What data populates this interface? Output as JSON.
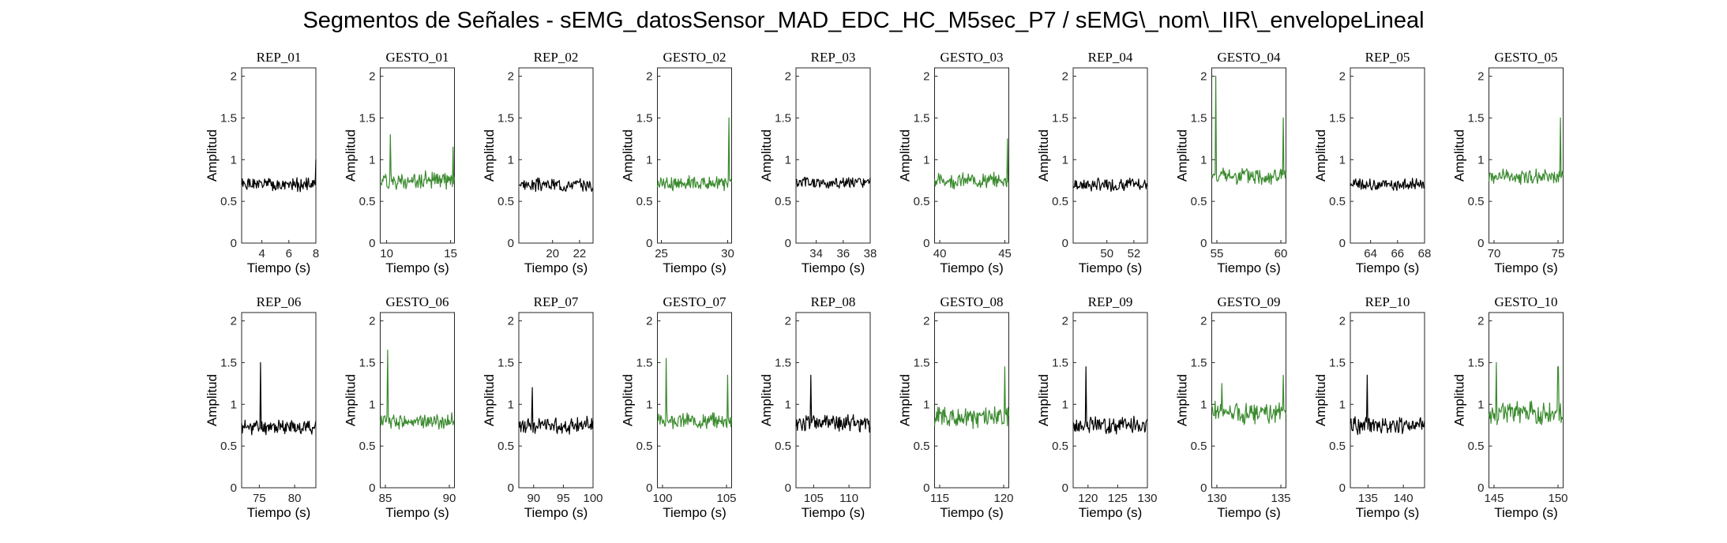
{
  "title": "Segmentos de Señales - sEMG_datosSensor_MAD_EDC_HC_M5sec_P7 / sEMG\\_nom\\_IIR\\_envelopeLineal",
  "colors": {
    "rep": "#000000",
    "gesto": "#3a8a2e",
    "axis": "#262626"
  },
  "chart_data": [
    {
      "type": "line",
      "title": "REP_01",
      "xlabel": "Tiempo (s)",
      "ylabel": "Amplitud",
      "xlim": [
        2.5,
        8
      ],
      "ylim": [
        0,
        2.1
      ],
      "xticks": [
        4,
        6,
        8
      ],
      "yticks": [
        0,
        0.5,
        1,
        1.5,
        2
      ],
      "series": [
        {
          "color": "#000000",
          "level": 0.7,
          "noise": 0.06,
          "spikes": [
            [
              8,
              1.0
            ]
          ]
        }
      ]
    },
    {
      "type": "line",
      "title": "GESTO_01",
      "xlabel": "Tiempo (s)",
      "ylabel": "Amplitud",
      "xlim": [
        9.5,
        15.3
      ],
      "ylim": [
        0,
        2.1
      ],
      "xticks": [
        10,
        15
      ],
      "yticks": [
        0,
        0.5,
        1,
        1.5,
        2
      ],
      "series": [
        {
          "color": "#3a8a2e",
          "level": 0.75,
          "noise": 0.08,
          "spikes": [
            [
              10.3,
              1.3
            ],
            [
              15.2,
              1.15
            ]
          ]
        }
      ]
    },
    {
      "type": "line",
      "title": "REP_02",
      "xlabel": "Tiempo (s)",
      "ylabel": "Amplitud",
      "xlim": [
        17.5,
        23
      ],
      "ylim": [
        0,
        2.1
      ],
      "xticks": [
        20,
        22
      ],
      "yticks": [
        0,
        0.5,
        1,
        1.5,
        2
      ],
      "series": [
        {
          "color": "#000000",
          "level": 0.7,
          "noise": 0.06,
          "spikes": []
        }
      ]
    },
    {
      "type": "line",
      "title": "GESTO_02",
      "xlabel": "Tiempo (s)",
      "ylabel": "Amplitud",
      "xlim": [
        24.7,
        30.3
      ],
      "ylim": [
        0,
        2.1
      ],
      "xticks": [
        25,
        30
      ],
      "yticks": [
        0,
        0.5,
        1,
        1.5,
        2
      ],
      "series": [
        {
          "color": "#3a8a2e",
          "level": 0.72,
          "noise": 0.07,
          "spikes": [
            [
              30.1,
              1.5
            ]
          ]
        }
      ]
    },
    {
      "type": "line",
      "title": "REP_03",
      "xlabel": "Tiempo (s)",
      "ylabel": "Amplitud",
      "xlim": [
        32.5,
        38
      ],
      "ylim": [
        0,
        2.1
      ],
      "xticks": [
        34,
        36,
        38
      ],
      "yticks": [
        0,
        0.5,
        1,
        1.5,
        2
      ],
      "series": [
        {
          "color": "#000000",
          "level": 0.72,
          "noise": 0.06,
          "spikes": []
        }
      ]
    },
    {
      "type": "line",
      "title": "GESTO_03",
      "xlabel": "Tiempo (s)",
      "ylabel": "Amplitud",
      "xlim": [
        39.6,
        45.3
      ],
      "ylim": [
        0,
        2.1
      ],
      "xticks": [
        40,
        45
      ],
      "yticks": [
        0,
        0.5,
        1,
        1.5,
        2
      ],
      "series": [
        {
          "color": "#3a8a2e",
          "level": 0.75,
          "noise": 0.07,
          "spikes": [
            [
              45.2,
              1.25
            ]
          ]
        }
      ]
    },
    {
      "type": "line",
      "title": "REP_04",
      "xlabel": "Tiempo (s)",
      "ylabel": "Amplitud",
      "xlim": [
        47.5,
        53
      ],
      "ylim": [
        0,
        2.1
      ],
      "xticks": [
        50,
        52
      ],
      "yticks": [
        0,
        0.5,
        1,
        1.5,
        2
      ],
      "series": [
        {
          "color": "#000000",
          "level": 0.7,
          "noise": 0.06,
          "spikes": []
        }
      ]
    },
    {
      "type": "line",
      "title": "GESTO_04",
      "xlabel": "Tiempo (s)",
      "ylabel": "Amplitud",
      "xlim": [
        54.6,
        60.4
      ],
      "ylim": [
        0,
        2.1
      ],
      "xticks": [
        55,
        60
      ],
      "yticks": [
        0,
        0.5,
        1,
        1.5,
        2
      ],
      "series": [
        {
          "color": "#3a8a2e",
          "level": 0.8,
          "noise": 0.08,
          "spikes": [
            [
              54.9,
              2.0
            ],
            [
              60.2,
              1.5
            ]
          ]
        }
      ]
    },
    {
      "type": "line",
      "title": "REP_05",
      "xlabel": "Tiempo (s)",
      "ylabel": "Amplitud",
      "xlim": [
        62.5,
        68
      ],
      "ylim": [
        0,
        2.1
      ],
      "xticks": [
        64,
        66,
        68
      ],
      "yticks": [
        0,
        0.5,
        1,
        1.5,
        2
      ],
      "series": [
        {
          "color": "#000000",
          "level": 0.7,
          "noise": 0.06,
          "spikes": []
        }
      ]
    },
    {
      "type": "line",
      "title": "GESTO_05",
      "xlabel": "Tiempo (s)",
      "ylabel": "Amplitud",
      "xlim": [
        69.6,
        75.4
      ],
      "ylim": [
        0,
        2.1
      ],
      "xticks": [
        70,
        75
      ],
      "yticks": [
        0,
        0.5,
        1,
        1.5,
        2
      ],
      "series": [
        {
          "color": "#3a8a2e",
          "level": 0.8,
          "noise": 0.07,
          "spikes": [
            [
              75.2,
              1.5
            ]
          ]
        }
      ]
    },
    {
      "type": "line",
      "title": "REP_06",
      "xlabel": "Tiempo (s)",
      "ylabel": "Amplitud",
      "xlim": [
        72.5,
        83
      ],
      "ylim": [
        0,
        2.1
      ],
      "xticks": [
        75,
        80
      ],
      "yticks": [
        0,
        0.5,
        1,
        1.5,
        2
      ],
      "series": [
        {
          "color": "#000000",
          "level": 0.73,
          "noise": 0.07,
          "spikes": [
            [
              75.2,
              1.5
            ]
          ]
        }
      ]
    },
    {
      "type": "line",
      "title": "GESTO_06",
      "xlabel": "Tiempo (s)",
      "ylabel": "Amplitud",
      "xlim": [
        84.6,
        90.4
      ],
      "ylim": [
        0,
        2.1
      ],
      "xticks": [
        85,
        90
      ],
      "yticks": [
        0,
        0.5,
        1,
        1.5,
        2
      ],
      "series": [
        {
          "color": "#3a8a2e",
          "level": 0.8,
          "noise": 0.07,
          "spikes": [
            [
              85.2,
              1.65
            ]
          ]
        }
      ]
    },
    {
      "type": "line",
      "title": "REP_07",
      "xlabel": "Tiempo (s)",
      "ylabel": "Amplitud",
      "xlim": [
        87.5,
        100
      ],
      "ylim": [
        0,
        2.1
      ],
      "xticks": [
        90,
        95,
        100
      ],
      "yticks": [
        0,
        0.5,
        1,
        1.5,
        2
      ],
      "series": [
        {
          "color": "#000000",
          "level": 0.75,
          "noise": 0.08,
          "spikes": [
            [
              89.8,
              1.2
            ]
          ]
        }
      ]
    },
    {
      "type": "line",
      "title": "GESTO_07",
      "xlabel": "Tiempo (s)",
      "ylabel": "Amplitud",
      "xlim": [
        99.6,
        105.4
      ],
      "ylim": [
        0,
        2.1
      ],
      "xticks": [
        100,
        105
      ],
      "yticks": [
        0,
        0.5,
        1,
        1.5,
        2
      ],
      "series": [
        {
          "color": "#3a8a2e",
          "level": 0.8,
          "noise": 0.07,
          "spikes": [
            [
              100.3,
              1.55
            ],
            [
              105.1,
              1.35
            ]
          ]
        }
      ]
    },
    {
      "type": "line",
      "title": "REP_08",
      "xlabel": "Tiempo (s)",
      "ylabel": "Amplitud",
      "xlim": [
        102.5,
        113
      ],
      "ylim": [
        0,
        2.1
      ],
      "xticks": [
        105,
        110
      ],
      "yticks": [
        0,
        0.5,
        1,
        1.5,
        2
      ],
      "series": [
        {
          "color": "#000000",
          "level": 0.78,
          "noise": 0.08,
          "spikes": [
            [
              104.6,
              1.35
            ]
          ]
        }
      ]
    },
    {
      "type": "line",
      "title": "GESTO_08",
      "xlabel": "Tiempo (s)",
      "ylabel": "Amplitud",
      "xlim": [
        114.6,
        120.4
      ],
      "ylim": [
        0,
        2.1
      ],
      "xticks": [
        115,
        120
      ],
      "yticks": [
        0,
        0.5,
        1,
        1.5,
        2
      ],
      "series": [
        {
          "color": "#3a8a2e",
          "level": 0.85,
          "noise": 0.1,
          "spikes": [
            [
              120.1,
              1.45
            ]
          ]
        }
      ]
    },
    {
      "type": "line",
      "title": "REP_09",
      "xlabel": "Tiempo (s)",
      "ylabel": "Amplitud",
      "xlim": [
        117.5,
        130
      ],
      "ylim": [
        0,
        2.1
      ],
      "xticks": [
        120,
        125,
        130
      ],
      "yticks": [
        0,
        0.5,
        1,
        1.5,
        2
      ],
      "series": [
        {
          "color": "#000000",
          "level": 0.75,
          "noise": 0.08,
          "spikes": [
            [
              119.7,
              1.45
            ]
          ]
        }
      ]
    },
    {
      "type": "line",
      "title": "GESTO_09",
      "xlabel": "Tiempo (s)",
      "ylabel": "Amplitud",
      "xlim": [
        129.6,
        135.4
      ],
      "ylim": [
        0,
        2.1
      ],
      "xticks": [
        130,
        135
      ],
      "yticks": [
        0,
        0.5,
        1,
        1.5,
        2
      ],
      "series": [
        {
          "color": "#3a8a2e",
          "level": 0.9,
          "noise": 0.1,
          "spikes": [
            [
              130.4,
              1.25
            ],
            [
              135.2,
              1.35
            ]
          ]
        }
      ]
    },
    {
      "type": "line",
      "title": "REP_10",
      "xlabel": "Tiempo (s)",
      "ylabel": "Amplitud",
      "xlim": [
        132.5,
        143
      ],
      "ylim": [
        0,
        2.1
      ],
      "xticks": [
        135,
        140
      ],
      "yticks": [
        0,
        0.5,
        1,
        1.5,
        2
      ],
      "series": [
        {
          "color": "#000000",
          "level": 0.75,
          "noise": 0.08,
          "spikes": [
            [
              134.9,
              1.35
            ]
          ]
        }
      ]
    },
    {
      "type": "line",
      "title": "GESTO_10",
      "xlabel": "Tiempo (s)",
      "ylabel": "Amplitud",
      "xlim": [
        144.6,
        150.4
      ],
      "ylim": [
        0,
        2.1
      ],
      "xticks": [
        145,
        150
      ],
      "yticks": [
        0,
        0.5,
        1,
        1.5,
        2
      ],
      "series": [
        {
          "color": "#3a8a2e",
          "level": 0.9,
          "noise": 0.1,
          "spikes": [
            [
              145.2,
              1.5
            ],
            [
              150.0,
              1.45
            ]
          ]
        }
      ]
    }
  ]
}
